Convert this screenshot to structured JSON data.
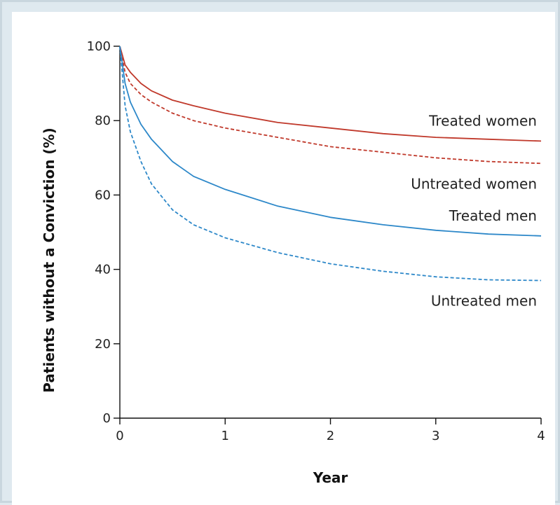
{
  "chart_data": {
    "type": "line",
    "title": "",
    "xlabel": "Year",
    "ylabel": "Patients without a Conviction (%)",
    "xlim": [
      0,
      4
    ],
    "ylim": [
      0,
      100
    ],
    "x_ticks": [
      "0",
      "1",
      "2",
      "3",
      "4"
    ],
    "y_ticks": [
      "0",
      "20",
      "40",
      "60",
      "80",
      "100"
    ],
    "grid": false,
    "legend": "labels next to curves at right",
    "series": [
      {
        "name": "Treated women",
        "color": "#c0392b",
        "style": "solid",
        "x": [
          0,
          0.05,
          0.1,
          0.2,
          0.3,
          0.5,
          0.7,
          1.0,
          1.5,
          2.0,
          2.5,
          3.0,
          3.5,
          4.0
        ],
        "y": [
          100,
          95,
          93,
          90,
          88,
          85.5,
          84,
          82,
          79.5,
          78,
          76.5,
          75.5,
          75,
          74.5
        ]
      },
      {
        "name": "Untreated women",
        "color": "#c0392b",
        "style": "dashed",
        "x": [
          0,
          0.05,
          0.1,
          0.2,
          0.3,
          0.5,
          0.7,
          1.0,
          1.5,
          2.0,
          2.5,
          3.0,
          3.5,
          4.0
        ],
        "y": [
          100,
          93,
          90,
          87,
          85,
          82,
          80,
          78,
          75.5,
          73,
          71.5,
          70,
          69,
          68.5
        ]
      },
      {
        "name": "Treated men",
        "color": "#2d88c9",
        "style": "solid",
        "x": [
          0,
          0.05,
          0.1,
          0.2,
          0.3,
          0.5,
          0.7,
          1.0,
          1.5,
          2.0,
          2.5,
          3.0,
          3.5,
          4.0
        ],
        "y": [
          100,
          90,
          85,
          79,
          75,
          69,
          65,
          61.5,
          57,
          54,
          52,
          50.5,
          49.5,
          49
        ]
      },
      {
        "name": "Untreated men",
        "color": "#2d88c9",
        "style": "dashed",
        "x": [
          0,
          0.05,
          0.1,
          0.2,
          0.3,
          0.5,
          0.7,
          1.0,
          1.5,
          2.0,
          2.5,
          3.0,
          3.5,
          4.0
        ],
        "y": [
          100,
          84,
          77,
          69,
          63,
          56,
          52,
          48.5,
          44.5,
          41.5,
          39.5,
          38,
          37.2,
          37
        ]
      }
    ]
  }
}
